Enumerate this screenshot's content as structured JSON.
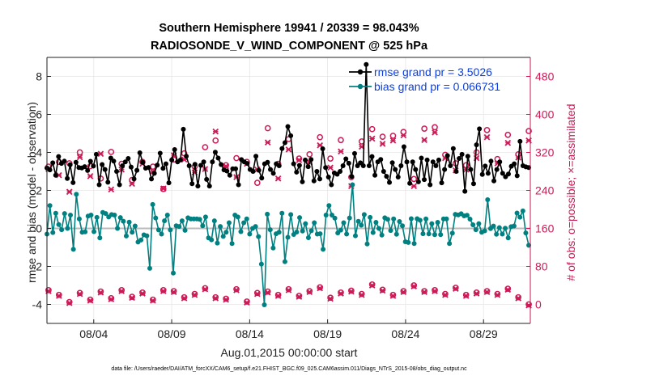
{
  "chart_data": {
    "type": "line",
    "title_line1": "Southern Hemisphere 19941 / 20339 = 98.043%",
    "title_line2": "RADIOSONDE_V_WIND_COMPONENT @ 525 hPa",
    "xlabel": "Aug.01,2015 00:00:00 start",
    "ylabel_left": "rmse and bias (model - observation)",
    "ylabel_right": "# of obs: o=possible; ×=assimilated",
    "footnote": "data file: /Users/raeder/DAI/ATM_forcXX/CAM6_setup/f.e21.FHIST_BGC.f09_025.CAM6assim.011/Diags_NTrS_2015-08/obs_diag_output.nc",
    "x_tick_labels": [
      "08/04",
      "08/09",
      "08/14",
      "08/19",
      "08/24",
      "08/29"
    ],
    "x_tick_days": [
      4,
      9,
      14,
      19,
      24,
      29
    ],
    "xlim_days": [
      1,
      32
    ],
    "ylim_left": [
      -5,
      9
    ],
    "y_left_ticks": [
      -4,
      -2,
      0,
      2,
      4,
      6,
      8
    ],
    "ylim_right": [
      -40,
      520
    ],
    "y_right_ticks": [
      0,
      80,
      160,
      240,
      320,
      400,
      480
    ],
    "grid": true,
    "legend_position": "top-right",
    "colors": {
      "rmse": "#000000",
      "bias": "#008080",
      "obs": "#cc1a55",
      "zero_line": "#bbbbbb"
    },
    "series": [
      {
        "name": "rmse grand pr = 3.5026",
        "axis": "left",
        "values": [
          3.18,
          3.08,
          3.45,
          2.8,
          3.78,
          3.42,
          3.54,
          2.63,
          3.35,
          2.41,
          3.48,
          3.2,
          3.18,
          3.25,
          3.05,
          3.53,
          3.28,
          3.9,
          2.3,
          3.36,
          3.1,
          2.43,
          3.7,
          3.54,
          3.0,
          2.3,
          3.3,
          3.5,
          3.68,
          3.23,
          2.6,
          3.06,
          3.98,
          3.48,
          3.17,
          3.21,
          2.6,
          2.9,
          3.33,
          3.96,
          3.16,
          3.4,
          2.4,
          3.6,
          4.15,
          3.5,
          3.6,
          5.22,
          3.8,
          3.3,
          2.35,
          3.37,
          2.23,
          3.32,
          3.5,
          2.58,
          2.23,
          3.5,
          4.01,
          3.7,
          3.36,
          3.08,
          3.02,
          2.8,
          3.14,
          3.14,
          2.3,
          3.62,
          3.5,
          3.42,
          3.1,
          3.0,
          3.8,
          3.06,
          2.65,
          3.4,
          3.48,
          3.1,
          2.9,
          3.4,
          3.3,
          4.2,
          4.51,
          5.36,
          4.88,
          3.4,
          2.96,
          3.32,
          2.45,
          3.6,
          3.25,
          3.63,
          2.5,
          3.0,
          2.6,
          4.19,
          3.2,
          2.7,
          2.3,
          2.92,
          2.85,
          3.0,
          3.3,
          3.66,
          3.43,
          2.73,
          3.94,
          3.3,
          3.45,
          3.3,
          8.63,
          3.3,
          3.78,
          2.8,
          3.5,
          3.63,
          3.0,
          2.74,
          2.42,
          3.46,
          3.1,
          2.7,
          3.3,
          4.3,
          3.5,
          2.37,
          3.5,
          3.1,
          2.45,
          3.7,
          2.57,
          3.6,
          2.3,
          3.5,
          3.3,
          3.6,
          2.4,
          3.1,
          3.83,
          3.3,
          4.2,
          3.0,
          3.68,
          3.9,
          1.95,
          3.8,
          3.1,
          2.35,
          4.4,
          5.24,
          2.84,
          3.28,
          2.9,
          3.54,
          2.5,
          3.1,
          3.5,
          2.9,
          2.72,
          2.86,
          3.27,
          3.4,
          2.77,
          4.58,
          3.3,
          3.24,
          3.2
        ]
      },
      {
        "name": "bias grand pr = 0.066731",
        "axis": "left",
        "values": [
          -0.3,
          1.2,
          -0.22,
          0.8,
          0.2,
          -0.07,
          0.78,
          0.0,
          0.7,
          -1.1,
          1.8,
          0.5,
          -0.2,
          -0.18,
          0.65,
          0.7,
          -0.17,
          0.58,
          -0.5,
          0.84,
          0.78,
          0.6,
          0.73,
          0.7,
          0.0,
          0.57,
          0.38,
          -0.4,
          0.33,
          -0.2,
          0.13,
          -0.72,
          -0.61,
          -0.34,
          -0.39,
          -2.1,
          1.26,
          0.55,
          -0.08,
          -0.3,
          0.4,
          0.7,
          -0.08,
          -2.35,
          0.14,
          0.1,
          0.4,
          -0.1,
          0.56,
          0.5,
          0.5,
          0.5,
          0.48,
          0.14,
          0.6,
          -0.5,
          -0.6,
          0.4,
          -0.77,
          0.1,
          -0.42,
          -0.2,
          0.3,
          -0.8,
          0.7,
          0.6,
          -0.17,
          0.3,
          0.5,
          -0.3,
          0.0,
          0.1,
          -0.43,
          -1.88,
          -4.02,
          0.75,
          -0.07,
          -1.03,
          -0.28,
          -0.2,
          0.8,
          -1.75,
          -0.47,
          0.73,
          -0.32,
          -0.19,
          0.57,
          -0.14,
          0.25,
          -0.49,
          -0.12,
          0.3,
          -0.3,
          -0.28,
          -1.1,
          0.7,
          1.2,
          0.7,
          0.54,
          -0.24,
          -0.09,
          0.3,
          -0.3,
          0.55,
          2.3,
          -0.39,
          0.37,
          0.17,
          0.73,
          -0.82,
          0.58,
          -0.22,
          0.32,
          0.0,
          -0.35,
          0.56,
          0.48,
          -0.11,
          0.5,
          -0.31,
          0.36,
          0.14,
          -0.7,
          -0.74,
          0.51,
          -0.8,
          0.51,
          0.43,
          -0.28,
          0.5,
          -0.29,
          0.25,
          -0.33,
          0.32,
          -0.33,
          0.5,
          0.5,
          -0.8,
          -0.25,
          0.74,
          0.71,
          0.77,
          0.66,
          0.69,
          0.49,
          0.19,
          -0.07,
          0.25,
          -0.2,
          -0.13,
          1.51,
          -0.01,
          0.12,
          -0.31,
          0.04,
          -0.3,
          0.01,
          -0.5,
          0.09,
          0.13,
          0.81,
          0.59,
          0.92,
          -0.24,
          -0.89
        ]
      },
      {
        "name": "# obs possible",
        "axis": "right",
        "marker": "o",
        "values": [
          290,
          300,
          297,
          320,
          291,
          265,
          321,
          296,
          262,
          300,
          290,
          243,
          305,
          318,
          290,
          331,
          345,
          293,
          308,
          300,
          256,
          371,
          296,
          348,
          307,
          316,
          352,
          307,
          346,
          268,
          343,
          369,
          353,
          355,
          363,
          264,
          370,
          373,
          315,
          297,
          293,
          320,
          367,
          306,
          357,
          316,
          365
        ]
      },
      {
        "name": "# obs assimilated",
        "axis": "right",
        "marker": "x",
        "values": [
          285,
          272,
          237,
          310,
          270,
          317,
          242,
          284,
          254,
          296,
          280,
          244,
          314,
          305,
          278,
          285,
          364,
          291,
          268,
          296,
          284,
          341,
          265,
          326,
          304,
          299,
          335,
          288,
          322,
          249,
          332,
          349,
          338,
          345,
          356,
          249,
          346,
          362,
          308,
          282,
          284,
          308,
          352,
          297,
          340,
          309,
          345
        ]
      },
      {
        "name": "# obs possible (low)",
        "axis": "right",
        "marker": "o",
        "values": [
          30,
          20,
          5,
          24,
          10,
          27,
          13,
          30,
          16,
          25,
          10,
          30,
          28,
          15,
          22,
          34,
          15,
          12,
          32,
          6,
          24,
          27,
          20,
          32,
          18,
          28,
          36,
          14,
          25,
          29,
          22,
          42,
          31,
          20,
          28,
          40,
          28,
          30,
          22,
          35,
          20,
          25,
          28,
          22,
          33,
          15,
          0
        ]
      },
      {
        "name": "# obs assimilated (low)",
        "axis": "right",
        "marker": "x",
        "values": [
          28,
          18,
          3,
          22,
          8,
          25,
          11,
          28,
          14,
          23,
          8,
          28,
          26,
          13,
          20,
          32,
          13,
          10,
          30,
          4,
          22,
          25,
          18,
          30,
          16,
          26,
          34,
          12,
          23,
          27,
          20,
          40,
          29,
          18,
          26,
          38,
          26,
          28,
          20,
          33,
          18,
          23,
          26,
          20,
          31,
          13,
          -2
        ]
      }
    ]
  }
}
